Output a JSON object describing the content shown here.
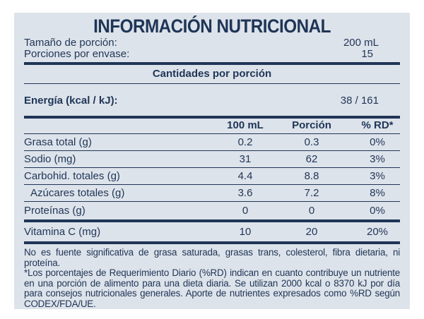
{
  "title": "INFORMACIÓN NUTRICIONAL",
  "serving": {
    "size_label": "Tamaño de porción:",
    "size_value": "200 mL",
    "servings_label": "Porciones por envase:",
    "servings_value": "15"
  },
  "amounts_header": "Cantidades por porción",
  "energy": {
    "label": "Energía (kcal / kJ):",
    "value": "38 / 161"
  },
  "columns": [
    "100 mL",
    "Porción",
    "% RD*"
  ],
  "nutrients": [
    {
      "name": "Grasa total (g)",
      "per100": "0.2",
      "portion": "0.3",
      "rd": "0%"
    },
    {
      "name": "Sodio (mg)",
      "per100": "31",
      "portion": "62",
      "rd": "3%"
    },
    {
      "name": "Carbohid. totales (g)",
      "per100": "4.4",
      "portion": "8.8",
      "rd": "3%"
    },
    {
      "name": "Azúcares totales (g)",
      "per100": "3.6",
      "portion": "7.2",
      "rd": "8%"
    },
    {
      "name": "Proteínas (g)",
      "per100": "0",
      "portion": "0",
      "rd": "0%"
    }
  ],
  "vitamin": {
    "name": "Vitamina C (mg)",
    "per100": "10",
    "portion": "20",
    "rd": "20%"
  },
  "footnotes": [
    "No es fuente significativa de grasa saturada, grasas trans, colesterol, fibra dietaria, ni proteína.",
    "*Los porcentajes de Requerimiento Diario (%RD) indican en cuanto contribuye un nutriente en una porción de alimento para una dieta diaria. Se utilizan 2000 kcal o 8370 kJ por día para consejos nutricionales generales. Aporte de nutrientes expresados como %RD según CODEX/FDA/UE."
  ],
  "colors": {
    "text": "#1f3557",
    "background": "#dde3ea",
    "rules": "#1f3557"
  }
}
